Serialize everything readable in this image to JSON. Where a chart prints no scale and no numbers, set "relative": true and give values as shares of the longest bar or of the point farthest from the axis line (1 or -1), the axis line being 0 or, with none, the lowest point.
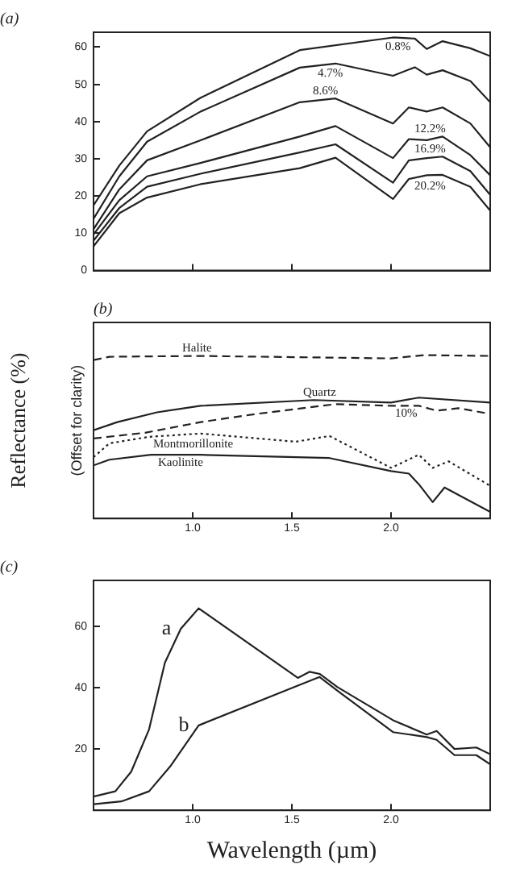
{
  "chart_data": [
    {
      "type": "line",
      "title": "(a)",
      "xlim": [
        0.5,
        2.5
      ],
      "ylim": [
        0,
        64
      ],
      "xticks": [
        {
          "value": 1,
          "label": null
        },
        {
          "value": 1.5,
          "label": null
        },
        {
          "value": 2,
          "label": null
        }
      ],
      "yticks": [
        0,
        10,
        20,
        30,
        40,
        50,
        60
      ],
      "tick_labels": "y",
      "marker": "none",
      "series": [
        {
          "name": "0.8%",
          "color": "#222222",
          "x": [
            0.5,
            0.63,
            0.77,
            1.04,
            1.54,
            2.01,
            2.12,
            2.18,
            2.26,
            2.4,
            2.5
          ],
          "values": [
            17.5,
            28.2,
            37.4,
            46.4,
            59.2,
            62.6,
            62.3,
            59.5,
            61.6,
            59.7,
            57.6
          ]
        },
        {
          "name": "4.7%",
          "color": "#222222",
          "x": [
            0.5,
            0.63,
            0.77,
            1.04,
            1.54,
            1.72,
            2.01,
            2.12,
            2.18,
            2.26,
            2.4,
            2.5
          ],
          "values": [
            13.9,
            25.3,
            34.6,
            42.7,
            54.5,
            55.6,
            52.3,
            54.6,
            52.6,
            53.8,
            50.9,
            45.2
          ]
        },
        {
          "name": "8.6%",
          "color": "#222222",
          "x": [
            0.5,
            0.63,
            0.77,
            1.04,
            1.54,
            1.72,
            2.01,
            2.09,
            2.18,
            2.26,
            2.4,
            2.5
          ],
          "values": [
            11.1,
            21.8,
            29.6,
            35.0,
            45.2,
            46.2,
            39.5,
            43.8,
            42.7,
            43.8,
            39.5,
            33.1
          ]
        },
        {
          "name": "12.2%",
          "color": "#222222",
          "x": [
            0.5,
            0.63,
            0.77,
            1.04,
            1.54,
            1.72,
            2.01,
            2.09,
            2.18,
            2.26,
            2.4,
            2.5
          ],
          "values": [
            9.7,
            18.9,
            25.3,
            28.9,
            36.0,
            38.8,
            30.2,
            35.3,
            35.0,
            36.0,
            31.0,
            25.6
          ]
        },
        {
          "name": "16.9%",
          "color": "#222222",
          "x": [
            0.5,
            0.63,
            0.77,
            1.04,
            1.54,
            1.72,
            2.01,
            2.09,
            2.18,
            2.26,
            2.4,
            2.5
          ],
          "values": [
            8.0,
            16.8,
            22.5,
            26.0,
            31.7,
            33.9,
            23.6,
            29.6,
            30.2,
            30.6,
            26.7,
            20.3
          ]
        },
        {
          "name": "20.2%",
          "color": "#222222",
          "x": [
            0.5,
            0.63,
            0.77,
            1.04,
            1.54,
            1.72,
            2.01,
            2.09,
            2.18,
            2.26,
            2.4,
            2.5
          ],
          "values": [
            6.5,
            15.4,
            19.6,
            23.2,
            27.5,
            30.3,
            19.2,
            24.6,
            25.6,
            25.7,
            22.5,
            16.1
          ]
        }
      ]
    },
    {
      "type": "line",
      "title": "(b)",
      "ylabel": "Reflectance (%)",
      "annotations": [
        "(Offset for clarity)"
      ],
      "relative": true,
      "xlim": [
        0.5,
        2.5
      ],
      "xticks": [
        {
          "value": 1,
          "label": "1.0"
        },
        {
          "value": 1.5,
          "label": "1.5"
        },
        {
          "value": 2,
          "label": "2.0"
        }
      ],
      "tick_labels": "x",
      "marker": "none",
      "series": [
        {
          "name": "Halite",
          "color": "#222222",
          "line_style": "dashed",
          "x": [
            0.5,
            0.58,
            1.04,
            2.0,
            2.17,
            2.5
          ],
          "values": [
            0.97,
            0.99,
            0.995,
            0.98,
            1.0,
            0.995
          ]
        },
        {
          "name": "Quartz",
          "color": "#222222",
          "x": [
            0.5,
            0.62,
            0.82,
            1.04,
            1.61,
            2.0,
            2.14,
            2.5
          ],
          "values": [
            0.54,
            0.59,
            0.65,
            0.69,
            0.725,
            0.71,
            0.74,
            0.71
          ]
        },
        {
          "name": "10%",
          "color": "#222222",
          "line_style": "dashed",
          "x": [
            0.5,
            0.76,
            1.04,
            1.32,
            1.72,
            2.0,
            2.14,
            2.23,
            2.34,
            2.5
          ],
          "values": [
            0.49,
            0.525,
            0.59,
            0.64,
            0.7,
            0.69,
            0.69,
            0.66,
            0.675,
            0.64
          ]
        },
        {
          "name": "Montmorillonite",
          "color": "#222222",
          "line_style": "dotted",
          "x": [
            0.5,
            0.58,
            0.78,
            1.04,
            1.52,
            1.69,
            2.0,
            2.14,
            2.21,
            2.29,
            2.5
          ],
          "values": [
            0.375,
            0.46,
            0.5,
            0.52,
            0.47,
            0.505,
            0.31,
            0.39,
            0.31,
            0.35,
            0.2
          ]
        },
        {
          "name": "Kaolinite",
          "color": "#222222",
          "x": [
            0.5,
            0.58,
            0.79,
            1.04,
            1.69,
            2.0,
            2.09,
            2.14,
            2.21,
            2.27,
            2.5
          ],
          "values": [
            0.325,
            0.36,
            0.39,
            0.39,
            0.37,
            0.29,
            0.275,
            0.21,
            0.1,
            0.19,
            0.04
          ]
        }
      ]
    },
    {
      "type": "line",
      "title": "(c)",
      "xlabel": "Wavelength (µm)",
      "xlim": [
        0.5,
        2.5
      ],
      "ylim": [
        0,
        75
      ],
      "xticks": [
        {
          "value": 1,
          "label": "1.0"
        },
        {
          "value": 1.5,
          "label": "1.5"
        },
        {
          "value": 2,
          "label": "2.0"
        }
      ],
      "yticks": [
        20,
        40,
        60
      ],
      "marker": "none",
      "series": [
        {
          "name": "a",
          "color": "#222222",
          "x": [
            0.5,
            0.61,
            0.69,
            0.78,
            0.86,
            0.94,
            1.03,
            1.53,
            1.59,
            1.64,
            1.73,
            2.01,
            2.18,
            2.23,
            2.32,
            2.43,
            2.5
          ],
          "values": [
            4.5,
            6.2,
            12.6,
            26.4,
            48.2,
            59.2,
            65.9,
            43.2,
            45.2,
            44.5,
            40.2,
            29.4,
            24.7,
            25.9,
            20.0,
            20.5,
            18.3
          ]
        },
        {
          "name": "b",
          "color": "#222222",
          "x": [
            0.5,
            0.64,
            0.78,
            0.89,
            1.03,
            1.53,
            1.64,
            1.73,
            2.01,
            2.18,
            2.23,
            2.32,
            2.43,
            2.5
          ],
          "values": [
            2.0,
            2.9,
            6.2,
            14.6,
            27.7,
            40.7,
            43.5,
            39.0,
            25.5,
            23.9,
            23.0,
            18.0,
            18.0,
            15.0
          ]
        }
      ]
    }
  ]
}
